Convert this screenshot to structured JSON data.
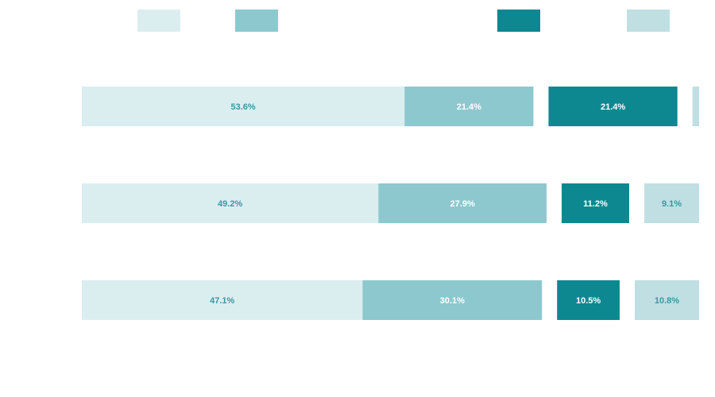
{
  "chart_data": {
    "type": "bar",
    "orientation": "horizontal",
    "stacked": true,
    "title": "",
    "xlabel": "",
    "ylabel": "",
    "categories": [
      "",
      "",
      ""
    ],
    "legend": {
      "placement": "top",
      "show_labels": false
    },
    "grid": false,
    "gap_between": [
      1,
      2
    ],
    "series": [
      {
        "values": [
          53.6,
          49.2,
          47.1
        ],
        "labels": [
          "53.6%",
          "49.2%",
          "47.1%"
        ],
        "color": "#daeef0",
        "label_color": "#3a97a3"
      },
      {
        "values": [
          21.4,
          27.9,
          30.1
        ],
        "labels": [
          "21.4%",
          "27.9%",
          "30.1%"
        ],
        "color": "#8dc8cf",
        "label_color": "#ffffff"
      },
      {
        "values": [
          21.4,
          11.2,
          10.5
        ],
        "labels": [
          "21.4%",
          "11.2%",
          "10.5%"
        ],
        "color": "#0d8891",
        "label_color": "#ffffff"
      },
      {
        "values": [
          1.1,
          9.1,
          10.8
        ],
        "labels": [
          "",
          "9.1%",
          "10.8%"
        ],
        "color": "#bfdfe3",
        "label_color": "#3a97a3"
      }
    ]
  }
}
